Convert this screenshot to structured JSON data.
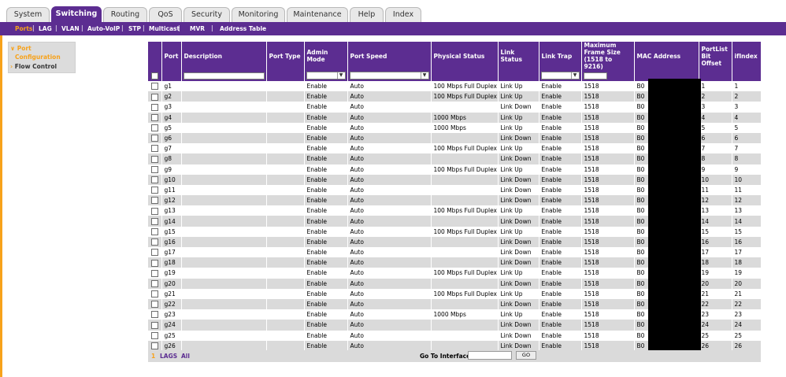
{
  "top_tabs": [
    "System",
    "Switching",
    "Routing",
    "QoS",
    "Security",
    "Monitoring",
    "Maintenance",
    "Help",
    "Index"
  ],
  "active_tab": "Switching",
  "sub_nav": [
    "Ports",
    "LAG",
    "VLAN",
    "Auto-VoIP",
    "STP",
    "Multicast",
    "MVR",
    "Address Table"
  ],
  "active_sub": "Ports",
  "sidebar": {
    "port_label": "Port",
    "configuration_label": "Configuration",
    "flow_label": "Flow Control"
  },
  "columns": [
    "Port",
    "Description",
    "Port Type",
    "Admin Mode",
    "Port Speed",
    "Physical Status",
    "Link Status",
    "Link Trap",
    "Maximum Frame Size (1518 to 9216)",
    "MAC Address",
    "PortList Bit Offset",
    "ifIndex"
  ],
  "rows": [
    {
      "port": "g1",
      "admin": "Enable",
      "speed": "Auto",
      "physical": "100 Mbps Full Duplex",
      "link": "Link Up",
      "trap": "Enable",
      "frame": "1518",
      "mac": "B0",
      "offset": "1",
      "ifindex": "1"
    },
    {
      "port": "g2",
      "admin": "Enable",
      "speed": "Auto",
      "physical": "100 Mbps Full Duplex",
      "link": "Link Up",
      "trap": "Enable",
      "frame": "1518",
      "mac": "B0",
      "offset": "2",
      "ifindex": "2"
    },
    {
      "port": "g3",
      "admin": "Enable",
      "speed": "Auto",
      "physical": "",
      "link": "Link Down",
      "trap": "Enable",
      "frame": "1518",
      "mac": "B0",
      "offset": "3",
      "ifindex": "3"
    },
    {
      "port": "g4",
      "admin": "Enable",
      "speed": "Auto",
      "physical": "1000 Mbps",
      "link": "Link Up",
      "trap": "Enable",
      "frame": "1518",
      "mac": "B0",
      "offset": "4",
      "ifindex": "4"
    },
    {
      "port": "g5",
      "admin": "Enable",
      "speed": "Auto",
      "physical": "1000 Mbps",
      "link": "Link Up",
      "trap": "Enable",
      "frame": "1518",
      "mac": "B0",
      "offset": "5",
      "ifindex": "5"
    },
    {
      "port": "g6",
      "admin": "Enable",
      "speed": "Auto",
      "physical": "",
      "link": "Link Down",
      "trap": "Enable",
      "frame": "1518",
      "mac": "B0",
      "offset": "6",
      "ifindex": "6"
    },
    {
      "port": "g7",
      "admin": "Enable",
      "speed": "Auto",
      "physical": "100 Mbps Full Duplex",
      "link": "Link Up",
      "trap": "Enable",
      "frame": "1518",
      "mac": "B0",
      "offset": "7",
      "ifindex": "7"
    },
    {
      "port": "g8",
      "admin": "Enable",
      "speed": "Auto",
      "physical": "",
      "link": "Link Down",
      "trap": "Enable",
      "frame": "1518",
      "mac": "B0",
      "offset": "8",
      "ifindex": "8"
    },
    {
      "port": "g9",
      "admin": "Enable",
      "speed": "Auto",
      "physical": "100 Mbps Full Duplex",
      "link": "Link Up",
      "trap": "Enable",
      "frame": "1518",
      "mac": "B0",
      "offset": "9",
      "ifindex": "9"
    },
    {
      "port": "g10",
      "admin": "Enable",
      "speed": "Auto",
      "physical": "",
      "link": "Link Down",
      "trap": "Enable",
      "frame": "1518",
      "mac": "B0",
      "offset": "10",
      "ifindex": "10"
    },
    {
      "port": "g11",
      "admin": "Enable",
      "speed": "Auto",
      "physical": "",
      "link": "Link Down",
      "trap": "Enable",
      "frame": "1518",
      "mac": "B0",
      "offset": "11",
      "ifindex": "11"
    },
    {
      "port": "g12",
      "admin": "Enable",
      "speed": "Auto",
      "physical": "",
      "link": "Link Down",
      "trap": "Enable",
      "frame": "1518",
      "mac": "B0",
      "offset": "12",
      "ifindex": "12"
    },
    {
      "port": "g13",
      "admin": "Enable",
      "speed": "Auto",
      "physical": "100 Mbps Full Duplex",
      "link": "Link Up",
      "trap": "Enable",
      "frame": "1518",
      "mac": "B0",
      "offset": "13",
      "ifindex": "13"
    },
    {
      "port": "g14",
      "admin": "Enable",
      "speed": "Auto",
      "physical": "",
      "link": "Link Down",
      "trap": "Enable",
      "frame": "1518",
      "mac": "B0",
      "offset": "14",
      "ifindex": "14"
    },
    {
      "port": "g15",
      "admin": "Enable",
      "speed": "Auto",
      "physical": "100 Mbps Full Duplex",
      "link": "Link Up",
      "trap": "Enable",
      "frame": "1518",
      "mac": "B0",
      "offset": "15",
      "ifindex": "15"
    },
    {
      "port": "g16",
      "admin": "Enable",
      "speed": "Auto",
      "physical": "",
      "link": "Link Down",
      "trap": "Enable",
      "frame": "1518",
      "mac": "B0",
      "offset": "16",
      "ifindex": "16"
    },
    {
      "port": "g17",
      "admin": "Enable",
      "speed": "Auto",
      "physical": "",
      "link": "Link Down",
      "trap": "Enable",
      "frame": "1518",
      "mac": "B0",
      "offset": "17",
      "ifindex": "17"
    },
    {
      "port": "g18",
      "admin": "Enable",
      "speed": "Auto",
      "physical": "",
      "link": "Link Down",
      "trap": "Enable",
      "frame": "1518",
      "mac": "B0",
      "offset": "18",
      "ifindex": "18"
    },
    {
      "port": "g19",
      "admin": "Enable",
      "speed": "Auto",
      "physical": "100 Mbps Full Duplex",
      "link": "Link Up",
      "trap": "Enable",
      "frame": "1518",
      "mac": "B0",
      "offset": "19",
      "ifindex": "19"
    },
    {
      "port": "g20",
      "admin": "Enable",
      "speed": "Auto",
      "physical": "",
      "link": "Link Down",
      "trap": "Enable",
      "frame": "1518",
      "mac": "B0",
      "offset": "20",
      "ifindex": "20"
    },
    {
      "port": "g21",
      "admin": "Enable",
      "speed": "Auto",
      "physical": "100 Mbps Full Duplex",
      "link": "Link Up",
      "trap": "Enable",
      "frame": "1518",
      "mac": "B0",
      "offset": "21",
      "ifindex": "21"
    },
    {
      "port": "g22",
      "admin": "Enable",
      "speed": "Auto",
      "physical": "",
      "link": "Link Down",
      "trap": "Enable",
      "frame": "1518",
      "mac": "B0",
      "offset": "22",
      "ifindex": "22"
    },
    {
      "port": "g23",
      "admin": "Enable",
      "speed": "Auto",
      "physical": "1000 Mbps",
      "link": "Link Up",
      "trap": "Enable",
      "frame": "1518",
      "mac": "B0",
      "offset": "23",
      "ifindex": "23"
    },
    {
      "port": "g24",
      "admin": "Enable",
      "speed": "Auto",
      "physical": "",
      "link": "Link Down",
      "trap": "Enable",
      "frame": "1518",
      "mac": "B0",
      "offset": "24",
      "ifindex": "24"
    },
    {
      "port": "g25",
      "admin": "Enable",
      "speed": "Auto",
      "physical": "",
      "link": "Link Down",
      "trap": "Enable",
      "frame": "1518",
      "mac": "B0",
      "offset": "25",
      "ifindex": "25"
    },
    {
      "port": "g26",
      "admin": "Enable",
      "speed": "Auto",
      "physical": "",
      "link": "Link Down",
      "trap": "Enable",
      "frame": "1518",
      "mac": "B0",
      "offset": "26",
      "ifindex": "26"
    }
  ],
  "footer": {
    "page": "1",
    "lags": "LAGS",
    "all": "All",
    "goto_label": "Go To Interface",
    "go_button": "GO"
  },
  "icons": {
    "sidebar_port": "chevron-down-icon",
    "sidebar_flow": "chevron-right-icon",
    "select_arrow": "dropdown-arrow-icon"
  },
  "colors": {
    "accent": "#5c2d91",
    "highlight": "#f7a21b",
    "row_alt": "#dadada"
  }
}
